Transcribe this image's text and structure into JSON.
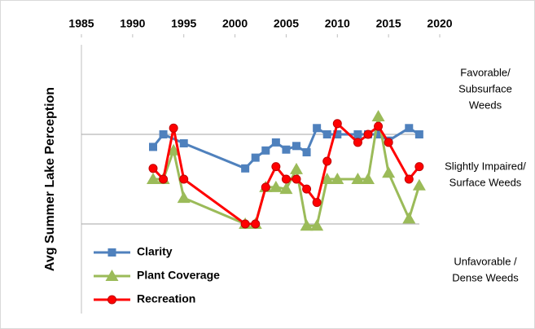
{
  "chart_data": {
    "type": "line",
    "y_label": "Avg  Summer Lake Perception",
    "xlim": [
      1985,
      2020
    ],
    "xticks": [
      1985,
      1990,
      1995,
      2000,
      2005,
      2010,
      2015,
      2020
    ],
    "ylim": [
      1,
      4
    ],
    "yticks": [
      2,
      3
    ],
    "ytick_labels_shown": false,
    "grid": true,
    "legend": "lower left",
    "series": [
      {
        "name": "Clarity",
        "color": "#4f81bd",
        "marker": "square",
        "x": [
          1992,
          1993,
          1995,
          2001,
          2002,
          2003,
          2004,
          2005,
          2006,
          2007,
          2008,
          2009,
          2010,
          2012,
          2013,
          2014,
          2015,
          2017,
          2018
        ],
        "values": [
          2.86,
          3.0,
          2.9,
          2.62,
          2.74,
          2.82,
          2.91,
          2.83,
          2.87,
          2.8,
          3.07,
          3.0,
          3.0,
          3.0,
          3.0,
          3.0,
          2.93,
          3.07,
          3.0
        ]
      },
      {
        "name": "Plant Coverage",
        "color": "#9bbb59",
        "marker": "triangle",
        "x": [
          1992,
          1993,
          1994,
          1995,
          2001,
          2002,
          2003,
          2004,
          2005,
          2006,
          2007,
          2008,
          2009,
          2010,
          2012,
          2013,
          2014,
          2015,
          2017,
          2018
        ],
        "values": [
          2.5,
          2.5,
          2.82,
          2.29,
          2.0,
          2.0,
          2.41,
          2.41,
          2.39,
          2.61,
          1.98,
          1.98,
          2.5,
          2.5,
          2.5,
          2.5,
          3.2,
          2.57,
          2.06,
          2.43
        ]
      },
      {
        "name": "Recreation",
        "color": "#ff0000",
        "marker": "circle",
        "x": [
          1992,
          1993,
          1994,
          1995,
          2001,
          2002,
          2003,
          2004,
          2005,
          2006,
          2007,
          2008,
          2009,
          2010,
          2012,
          2013,
          2014,
          2015,
          2017,
          2018
        ],
        "values": [
          2.62,
          2.5,
          3.07,
          2.5,
          2.0,
          2.0,
          2.41,
          2.64,
          2.5,
          2.5,
          2.39,
          2.24,
          2.7,
          3.12,
          2.91,
          3.0,
          3.09,
          2.91,
          2.5,
          2.64
        ]
      }
    ],
    "annotations": [
      {
        "lines": [
          "Favorable/",
          "Subsurface",
          "Weeds"
        ]
      },
      {
        "lines": [
          "Slightly Impaired/",
          "Surface Weeds"
        ]
      },
      {
        "lines": [
          "Unfavorable /",
          "Dense Weeds"
        ]
      }
    ]
  }
}
